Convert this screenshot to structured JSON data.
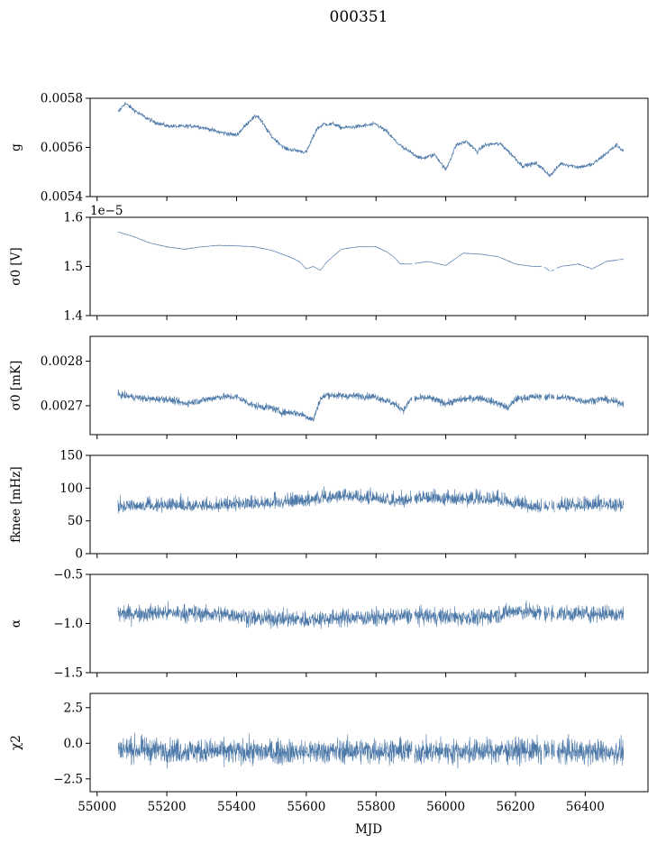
{
  "title": "000351",
  "x_axis": {
    "label": "MJD",
    "range": [
      54980,
      56580
    ],
    "ticks": [
      55000,
      55200,
      55400,
      55600,
      55800,
      56000,
      56200,
      56400
    ],
    "tick_labels": [
      "55000",
      "55200",
      "55400",
      "55600",
      "55800",
      "56000",
      "56200",
      "56400"
    ]
  },
  "series_color": "#4c78a8",
  "chart_data": [
    {
      "type": "line",
      "panel": "g",
      "ylabel": "g",
      "ylim": [
        0.0054,
        0.0058
      ],
      "yticks": [
        0.0054,
        0.0056,
        0.0058
      ],
      "ytick_labels": [
        "0.0054",
        "0.0056",
        "0.0058"
      ],
      "offset_text": "",
      "noise": 8e-06,
      "mjd": [
        55060,
        55080,
        55120,
        55160,
        55200,
        55240,
        55280,
        55320,
        55350,
        55400,
        55440,
        55460,
        55500,
        55540,
        55570,
        55600,
        55630,
        55650,
        55680,
        55700,
        55750,
        55800,
        55830,
        55860,
        55880,
        55900,
        55930,
        55970,
        56000,
        56030,
        56060,
        56090,
        56110,
        56140,
        56160,
        56200,
        56220,
        56260,
        56280,
        56300,
        56330,
        56380,
        56420,
        56460,
        56490,
        56510
      ],
      "values": [
        0.005742,
        0.00578,
        0.005738,
        0.005705,
        0.005688,
        0.005685,
        0.005688,
        0.005675,
        0.005662,
        0.00565,
        0.005712,
        0.00573,
        0.005645,
        0.005595,
        0.005588,
        0.00558,
        0.005675,
        0.005695,
        0.005695,
        0.00568,
        0.005685,
        0.005695,
        0.005665,
        0.00562,
        0.005595,
        0.00558,
        0.005555,
        0.00557,
        0.005508,
        0.00561,
        0.005625,
        0.005582,
        0.005608,
        0.005615,
        0.005612,
        0.005555,
        0.005525,
        0.005535,
        0.00551,
        0.005485,
        0.005535,
        0.00552,
        0.00553,
        0.005575,
        0.00561,
        0.005585
      ]
    },
    {
      "type": "line",
      "panel": "sigma0_V",
      "ylabel": "σ0 [V]",
      "ylim": [
        1.4e-05,
        1.6e-05
      ],
      "yticks": [
        1.4e-05,
        1.5e-05,
        1.6e-05
      ],
      "ytick_labels": [
        "1.4",
        "1.5",
        "1.6"
      ],
      "offset_text": "1e−5",
      "noise": 5.5e-09,
      "mjd": [
        55060,
        55100,
        55150,
        55200,
        55250,
        55300,
        55350,
        55400,
        55450,
        55500,
        55550,
        55580,
        55600,
        55620,
        55640,
        55660,
        55700,
        55750,
        55800,
        55830,
        55850,
        55870,
        55900,
        55950,
        56000,
        56050,
        56100,
        56150,
        56200,
        56250,
        56280,
        56300,
        56330,
        56380,
        56420,
        56460,
        56510
      ],
      "values": [
        1.57e-05,
        1.562e-05,
        1.548e-05,
        1.54e-05,
        1.535e-05,
        1.54e-05,
        1.543e-05,
        1.542e-05,
        1.54e-05,
        1.533e-05,
        1.52e-05,
        1.51e-05,
        1.495e-05,
        1.5e-05,
        1.492e-05,
        1.51e-05,
        1.535e-05,
        1.54e-05,
        1.54e-05,
        1.53e-05,
        1.52e-05,
        1.505e-05,
        1.505e-05,
        1.51e-05,
        1.502e-05,
        1.527e-05,
        1.525e-05,
        1.52e-05,
        1.505e-05,
        1.5e-05,
        1.5e-05,
        1.49e-05,
        1.5e-05,
        1.505e-05,
        1.495e-05,
        1.51e-05,
        1.515e-05
      ]
    },
    {
      "type": "line",
      "panel": "sigma0_mK",
      "ylabel": "σ0 [mK]",
      "ylim": [
        0.002635,
        0.002856
      ],
      "yticks": [
        0.0027,
        0.0028
      ],
      "ytick_labels": [
        "0.0027",
        "0.0028"
      ],
      "offset_text": "",
      "noise": 8e-06,
      "mjd": [
        55060,
        55100,
        55150,
        55200,
        55250,
        55300,
        55350,
        55400,
        55450,
        55500,
        55530,
        55560,
        55590,
        55620,
        55640,
        55660,
        55700,
        55750,
        55800,
        55850,
        55880,
        55900,
        55950,
        56000,
        56050,
        56100,
        56150,
        56180,
        56200,
        56250,
        56300,
        56350,
        56400,
        56450,
        56510
      ],
      "values": [
        0.002725,
        0.00272,
        0.002715,
        0.002715,
        0.002705,
        0.002712,
        0.00272,
        0.00272,
        0.0027,
        0.002695,
        0.002685,
        0.002685,
        0.00268,
        0.002668,
        0.002715,
        0.002725,
        0.002722,
        0.002722,
        0.00272,
        0.002705,
        0.00269,
        0.002715,
        0.002718,
        0.002705,
        0.002715,
        0.002718,
        0.002705,
        0.002695,
        0.002715,
        0.00272,
        0.00272,
        0.002718,
        0.00271,
        0.002715,
        0.002705
      ]
    },
    {
      "type": "line",
      "panel": "fknee",
      "ylabel": "fknee [mHz]",
      "ylim": [
        0,
        150
      ],
      "yticks": [
        0,
        50,
        100,
        150
      ],
      "ytick_labels": [
        "0",
        "50",
        "100",
        "150"
      ],
      "offset_text": "",
      "noise": 11,
      "mjd": [
        55060,
        55150,
        55250,
        55350,
        55450,
        55550,
        55600,
        55650,
        55700,
        55750,
        55800,
        55850,
        55900,
        55950,
        56000,
        56100,
        56150,
        56200,
        56250,
        56300,
        56350,
        56400,
        56450,
        56510
      ],
      "values": [
        70,
        72,
        72,
        73,
        75,
        78,
        80,
        85,
        88,
        85,
        84,
        80,
        82,
        84,
        82,
        82,
        82,
        75,
        70,
        72,
        72,
        73,
        74,
        72
      ]
    },
    {
      "type": "line",
      "panel": "alpha",
      "ylabel": "α",
      "ylim": [
        -1.5,
        -0.5
      ],
      "yticks": [
        -1.5,
        -1.0,
        -0.5
      ],
      "ytick_labels": [
        "−1.5",
        "−1.0",
        "−0.5"
      ],
      "offset_text": "",
      "noise": 0.085,
      "mjd": [
        55060,
        55200,
        55300,
        55400,
        55450,
        55500,
        55600,
        55700,
        55800,
        55900,
        56000,
        56100,
        56200,
        56300,
        56400,
        56510
      ],
      "values": [
        -0.9,
        -0.89,
        -0.9,
        -0.91,
        -0.95,
        -0.95,
        -0.96,
        -0.94,
        -0.94,
        -0.92,
        -0.93,
        -0.94,
        -0.87,
        -0.9,
        -0.9,
        -0.9
      ]
    },
    {
      "type": "line",
      "panel": "chi2",
      "ylabel": "χ2",
      "ylim": [
        -3.4,
        3.5
      ],
      "yticks": [
        -2.5,
        0.0,
        2.5
      ],
      "ytick_labels": [
        "−2.5",
        "0.0",
        "2.5"
      ],
      "offset_text": "",
      "noise": 0.85,
      "mjd": [
        55060,
        55200,
        55400,
        55600,
        55800,
        56000,
        56200,
        56400,
        56510
      ],
      "values": [
        -0.4,
        -0.5,
        -0.6,
        -0.6,
        -0.5,
        -0.6,
        -0.5,
        -0.6,
        -0.6
      ]
    }
  ]
}
